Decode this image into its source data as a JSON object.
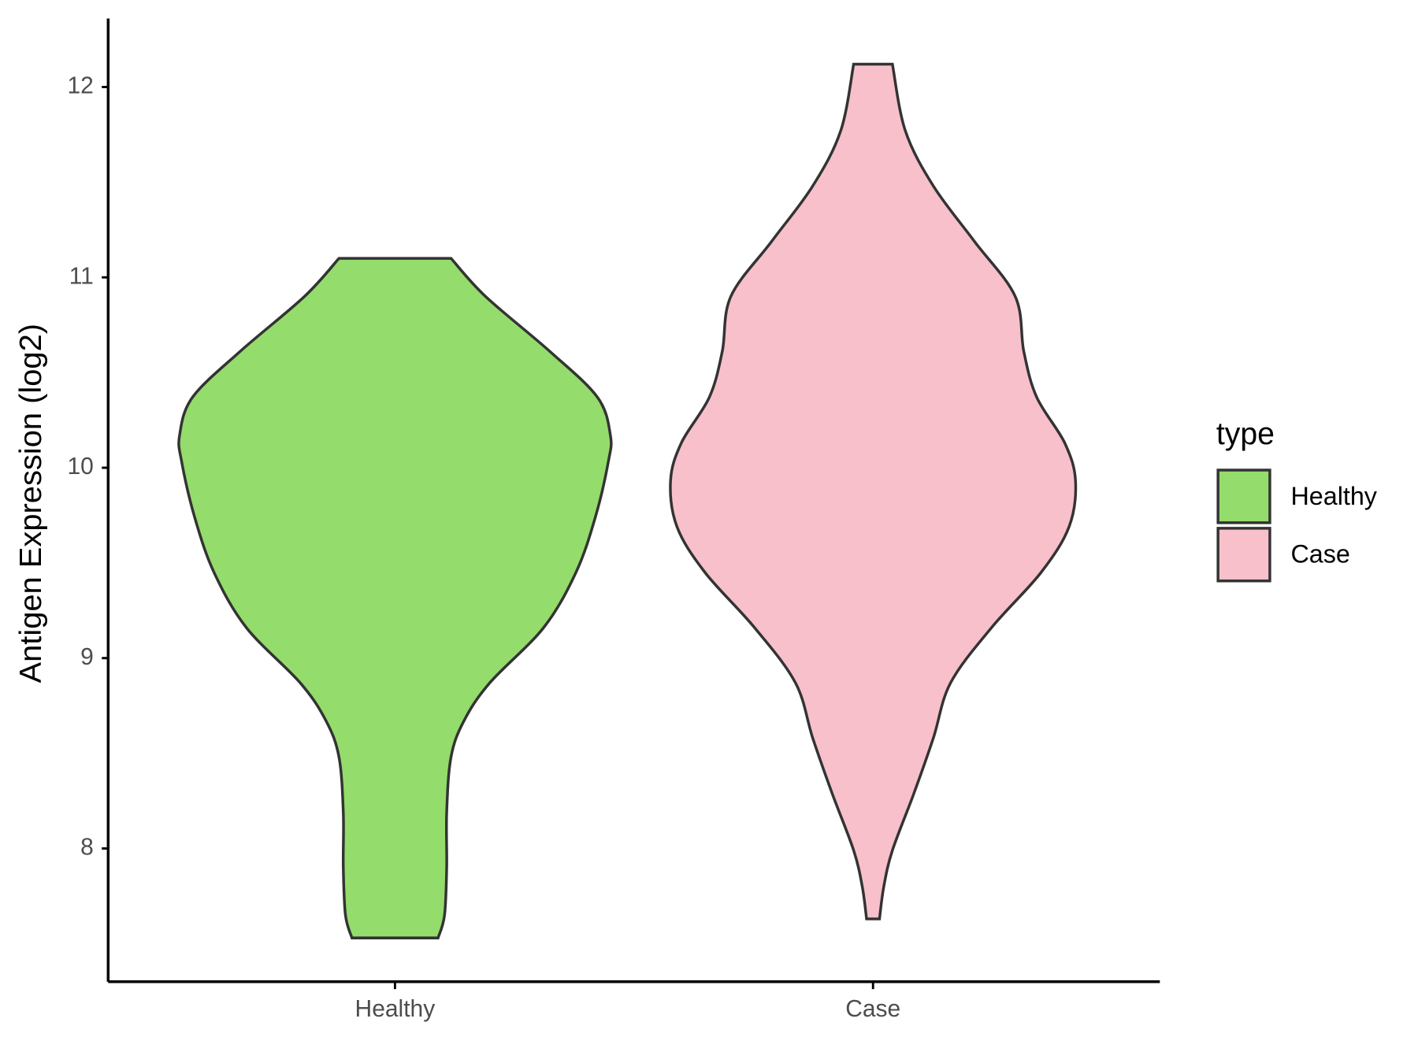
{
  "chart_data": {
    "type": "violin",
    "y_label": "Antigen Expression (log2)",
    "categories": [
      "Healthy",
      "Case"
    ],
    "legend_title": "type",
    "legend_position": "right",
    "ylim": [
      7.3,
      12.36
    ],
    "yticks": [
      8,
      9,
      10,
      11,
      12
    ],
    "series": [
      {
        "name": "Healthy",
        "color": "#94dc6b",
        "y": [
          7.53,
          7.65,
          7.9,
          8.19,
          8.48,
          8.67,
          8.87,
          9.16,
          9.45,
          9.74,
          10.03,
          10.17,
          10.37,
          10.61,
          10.9,
          11.1
        ],
        "width": [
          0.2,
          0.23,
          0.24,
          0.24,
          0.26,
          0.32,
          0.44,
          0.69,
          0.84,
          0.93,
          0.99,
          1.0,
          0.94,
          0.72,
          0.42,
          0.26
        ]
      },
      {
        "name": "Case",
        "color": "#f7c0cb",
        "y": [
          7.63,
          7.8,
          7.99,
          8.29,
          8.58,
          8.87,
          9.16,
          9.45,
          9.69,
          9.93,
          10.13,
          10.37,
          10.61,
          10.9,
          11.19,
          11.48,
          11.77,
          12.12
        ],
        "width": [
          0.03,
          0.05,
          0.09,
          0.19,
          0.28,
          0.36,
          0.55,
          0.78,
          0.91,
          0.94,
          0.89,
          0.76,
          0.7,
          0.66,
          0.47,
          0.28,
          0.15,
          0.09
        ]
      }
    ]
  }
}
